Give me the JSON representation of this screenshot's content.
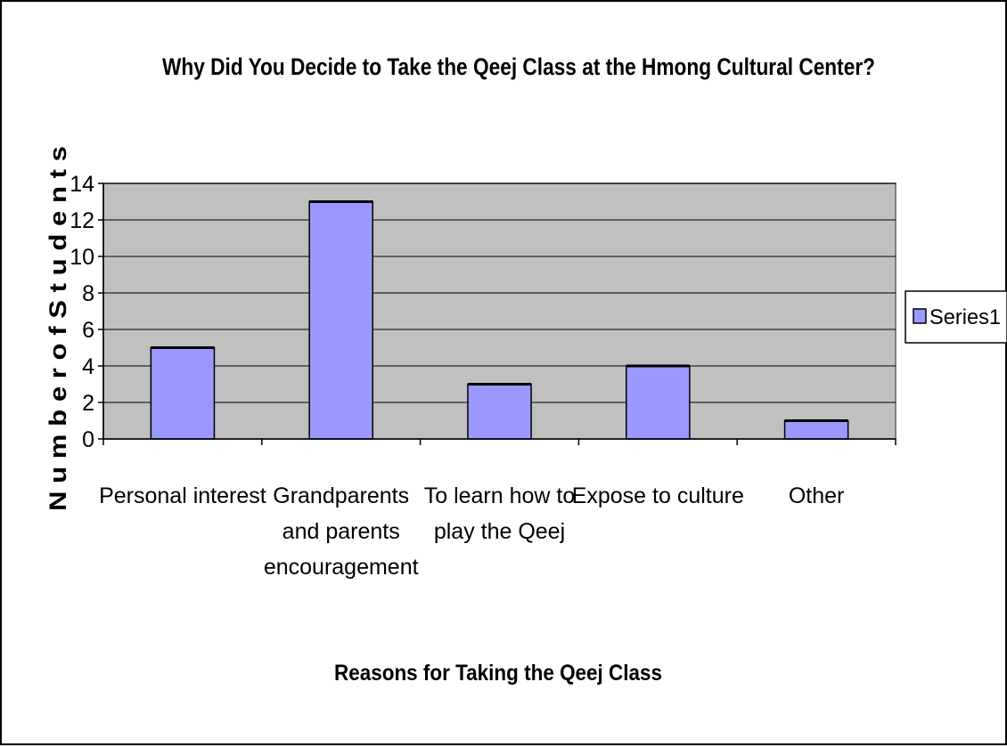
{
  "chart_data": {
    "type": "bar",
    "title": "Why Did You Decide to Take the Qeej Class at the Hmong Cultural Center?",
    "xlabel": "Reasons for Taking the Qeej Class",
    "ylabel": "N u m b e r  o f  S t u d e n t s",
    "categories": [
      [
        "Personal interest"
      ],
      [
        "Grandparents",
        "and parents",
        "encouragement"
      ],
      [
        "To learn how to",
        "play the Qeej"
      ],
      [
        "Expose to culture"
      ],
      [
        "Other"
      ]
    ],
    "series": [
      {
        "name": "Series1",
        "values": [
          5,
          13,
          3,
          4,
          1
        ]
      }
    ],
    "ylim": [
      0,
      14
    ],
    "yticks": [
      "0",
      "2",
      "4",
      "6",
      "8",
      "10",
      "12",
      "14"
    ],
    "grid": true,
    "legend_position": "right",
    "colors": {
      "bar_fill": "#9999ff",
      "plot_background": "#c0c0c0",
      "gridline": "#000000"
    }
  }
}
